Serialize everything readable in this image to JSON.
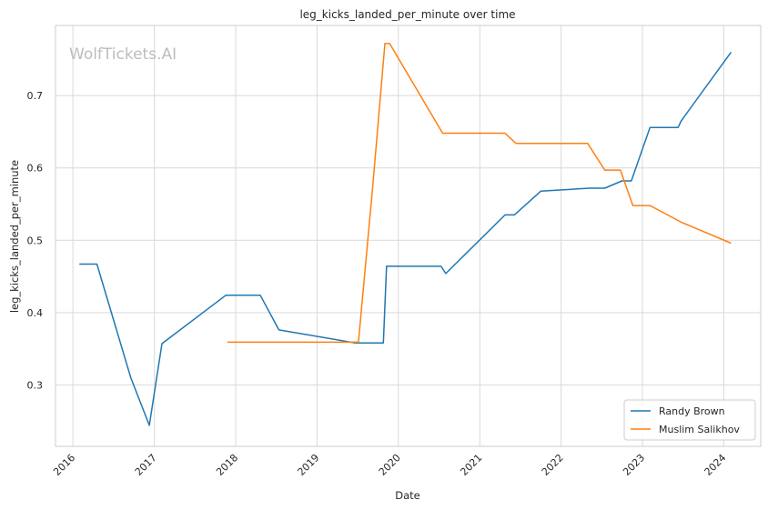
{
  "chart_data": {
    "type": "line",
    "title": "leg_kicks_landed_per_minute over time",
    "xlabel": "Date",
    "ylabel": "leg_kicks_landed_per_minute",
    "watermark": "WolfTickets.AI",
    "x_ticks": [
      "2016",
      "2017",
      "2018",
      "2019",
      "2020",
      "2021",
      "2022",
      "2023",
      "2024"
    ],
    "y_ticks": [
      "0.3",
      "0.4",
      "0.5",
      "0.6",
      "0.7"
    ],
    "xlim": [
      "2015-10-15",
      "2024-06-15"
    ],
    "ylim": [
      0.215,
      0.797
    ],
    "grid": true,
    "legend_position": "lower-right",
    "series": [
      {
        "name": "Randy Brown",
        "color": "#1f77b4",
        "points": [
          [
            "2016-01-30",
            0.467
          ],
          [
            "2016-04-18",
            0.467
          ],
          [
            "2016-09-17",
            0.31
          ],
          [
            "2016-12-09",
            0.244
          ],
          [
            "2017-02-04",
            0.357
          ],
          [
            "2017-11-18",
            0.424
          ],
          [
            "2018-04-21",
            0.424
          ],
          [
            "2018-07-14",
            0.376
          ],
          [
            "2019-06-22",
            0.358
          ],
          [
            "2019-10-26",
            0.358
          ],
          [
            "2019-11-09",
            0.464
          ],
          [
            "2020-07-11",
            0.464
          ],
          [
            "2020-08-01",
            0.454
          ],
          [
            "2021-04-24",
            0.535
          ],
          [
            "2021-06-05",
            0.535
          ],
          [
            "2021-10-02",
            0.568
          ],
          [
            "2022-05-07",
            0.572
          ],
          [
            "2022-07-16",
            0.572
          ],
          [
            "2022-10-01",
            0.582
          ],
          [
            "2022-11-12",
            0.582
          ],
          [
            "2023-02-04",
            0.656
          ],
          [
            "2023-06-10",
            0.656
          ],
          [
            "2023-06-24",
            0.665
          ],
          [
            "2024-02-03",
            0.76
          ]
        ]
      },
      {
        "name": "Muslim Salikhov",
        "color": "#ff7f0e",
        "points": [
          [
            "2017-11-25",
            0.359
          ],
          [
            "2019-07-06",
            0.359
          ],
          [
            "2019-09-07",
            0.57
          ],
          [
            "2019-11-02",
            0.772
          ],
          [
            "2019-11-23",
            0.772
          ],
          [
            "2020-07-18",
            0.648
          ],
          [
            "2021-04-24",
            0.648
          ],
          [
            "2021-06-12",
            0.634
          ],
          [
            "2022-04-30",
            0.634
          ],
          [
            "2022-07-16",
            0.597
          ],
          [
            "2022-09-24",
            0.597
          ],
          [
            "2022-11-19",
            0.548
          ],
          [
            "2023-02-04",
            0.548
          ],
          [
            "2023-06-24",
            0.525
          ],
          [
            "2024-02-03",
            0.496
          ]
        ]
      }
    ]
  }
}
